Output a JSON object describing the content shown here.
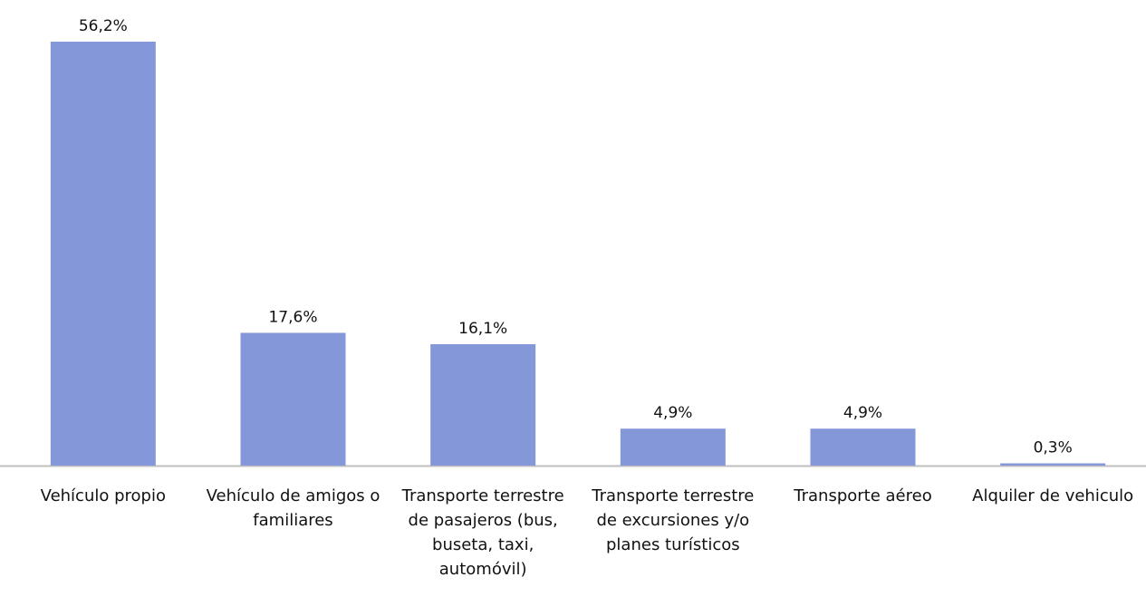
{
  "chart_data": {
    "type": "bar",
    "categories": [
      "Vehículo propio",
      "Vehículo de amigos o familiares",
      "Transporte terrestre de pasajeros (bus, buseta, taxi, automóvil)",
      "Transporte terrestre de excursiones y/o planes turísticos",
      "Transporte aéreo",
      "Alquiler de vehiculo"
    ],
    "values": [
      56.2,
      17.6,
      16.1,
      4.9,
      4.9,
      0.3
    ],
    "value_labels": [
      "56,2%",
      "17,6%",
      "16,1%",
      "4,9%",
      "4,9%",
      "0,3%"
    ],
    "color": "#8497d9"
  }
}
